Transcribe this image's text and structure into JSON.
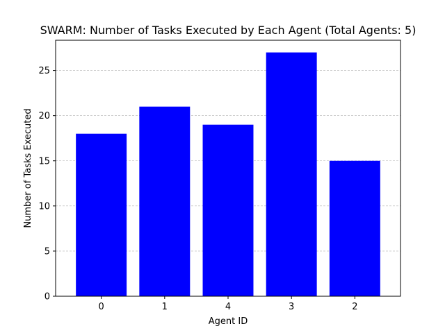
{
  "chart_data": {
    "type": "bar",
    "title": "SWARM: Number of Tasks Executed by Each Agent (Total Agents: 5)",
    "xlabel": "Agent ID",
    "ylabel": "Number of Tasks Executed",
    "categories": [
      "0",
      "1",
      "4",
      "3",
      "2"
    ],
    "values": [
      18,
      21,
      19,
      27,
      15
    ],
    "yticks": [
      0,
      5,
      10,
      15,
      20,
      25
    ],
    "ylim": [
      0,
      28.35
    ],
    "bar_color": "#0000ff",
    "grid": {
      "axis": "y",
      "style": "dashed",
      "color": "#b0b0b0"
    },
    "legend": "none"
  }
}
